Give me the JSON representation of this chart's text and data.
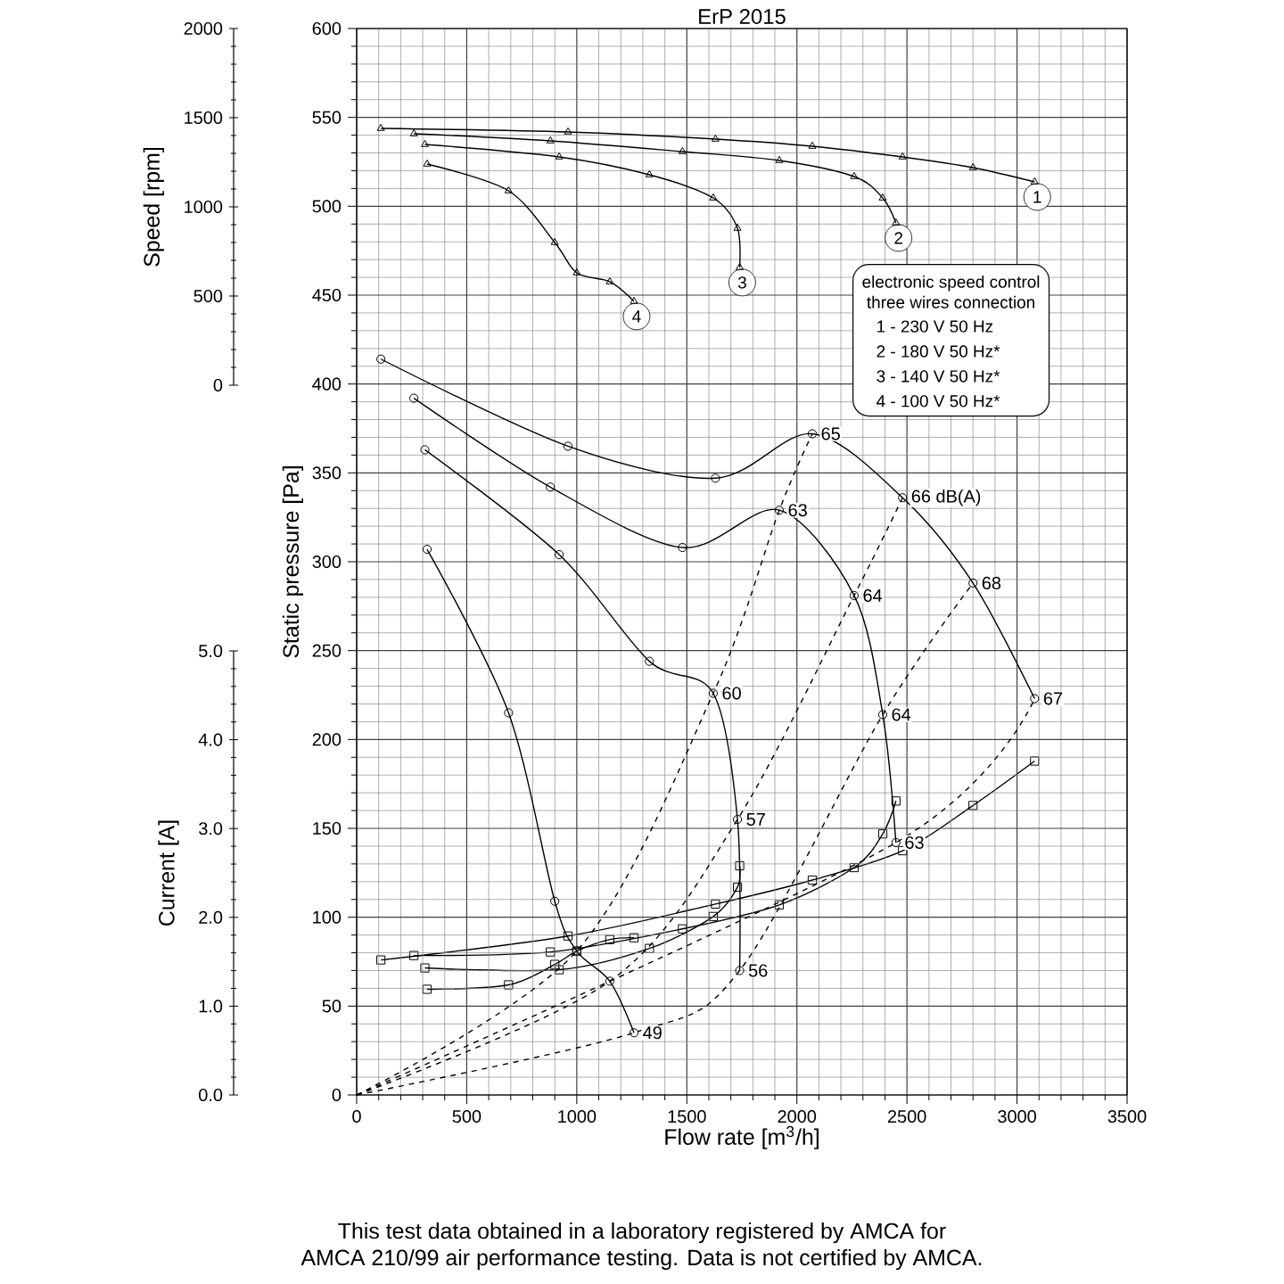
{
  "chart_data": [
    {
      "type": "line",
      "ylabel": "Speed [rpm]",
      "xlim": [
        0,
        3500
      ],
      "ylim": [
        0,
        2000
      ],
      "yticks": [
        0,
        500,
        1000,
        1500,
        2000
      ],
      "tick_labels": "y",
      "marker": "triangle",
      "annotations": [
        "electronic speed control",
        "three wires connection",
        "1 - 230 V 50 Hz",
        "2 - 180 V 50 Hz*",
        "3 - 140 V 50 Hz*",
        "4 - 100 V 50 Hz*"
      ],
      "series": [
        {
          "name": "1",
          "color": "#000000",
          "x": [
            110,
            960,
            1630,
            2070,
            2480,
            2800,
            3080
          ],
          "values": [
            1440,
            1420,
            1380,
            1340,
            1280,
            1220,
            1140
          ]
        },
        {
          "name": "2",
          "color": "#000000",
          "x": [
            260,
            880,
            1480,
            1920,
            2260,
            2390,
            2450
          ],
          "values": [
            1410,
            1370,
            1310,
            1260,
            1170,
            1050,
            910
          ]
        },
        {
          "name": "3",
          "color": "#000000",
          "x": [
            310,
            920,
            1330,
            1620,
            1730,
            1740
          ],
          "values": [
            1350,
            1280,
            1180,
            1050,
            880,
            660
          ]
        },
        {
          "name": "4",
          "color": "#000000",
          "x": [
            320,
            690,
            900,
            1000,
            1150,
            1260
          ],
          "values": [
            1240,
            1090,
            800,
            630,
            580,
            470
          ]
        }
      ]
    },
    {
      "type": "line",
      "title": "ErP 2015",
      "xlabel": "Flow rate [m$^{3}$/h]",
      "ylabel": "Static pressure [Pa]",
      "xlim": [
        0,
        3500
      ],
      "xticks": [
        0,
        500,
        1000,
        1500,
        2000,
        2500,
        3000,
        3500
      ],
      "ylim": [
        0,
        600
      ],
      "yticks": [
        0,
        50,
        100,
        150,
        200,
        250,
        300,
        350,
        400,
        450,
        500,
        550,
        600
      ],
      "grid": true,
      "marker": "circle",
      "annotations": [
        {
          "text": "65",
          "x": 2070,
          "y": 372
        },
        {
          "text": "66 dB(A)",
          "x": 2480,
          "y": 336
        },
        {
          "text": "68",
          "x": 2800,
          "y": 288
        },
        {
          "text": "67",
          "x": 3080,
          "y": 223
        },
        {
          "text": "63",
          "x": 1920,
          "y": 329
        },
        {
          "text": "64",
          "x": 2260,
          "y": 281
        },
        {
          "text": "64",
          "x": 2390,
          "y": 214
        },
        {
          "text": "63",
          "x": 2450,
          "y": 142
        },
        {
          "text": "60",
          "x": 1620,
          "y": 226
        },
        {
          "text": "57",
          "x": 1730,
          "y": 155
        },
        {
          "text": "56",
          "x": 1740,
          "y": 70
        },
        {
          "text": "49",
          "x": 1260,
          "y": 35
        },
        "This test data obtained in a laboratory registered by AMCA for",
        "AMCA 210/99 air performance testing. Data is not certified by AMCA."
      ],
      "series": [
        {
          "color": "#000000",
          "x": [
            110,
            960,
            1630,
            2070,
            2480,
            2800,
            3080
          ],
          "values": [
            414,
            365,
            347,
            372,
            336,
            288,
            223
          ]
        },
        {
          "color": "#000000",
          "x": [
            260,
            880,
            1480,
            1920,
            2260,
            2390,
            2450
          ],
          "values": [
            392,
            342,
            308,
            329,
            281,
            214,
            142
          ]
        },
        {
          "color": "#000000",
          "x": [
            310,
            920,
            1330,
            1620,
            1730,
            1740
          ],
          "values": [
            363,
            304,
            244,
            226,
            155,
            70
          ]
        },
        {
          "color": "#000000",
          "x": [
            320,
            690,
            900,
            1000,
            1150,
            1260
          ],
          "values": [
            307,
            215,
            109,
            81,
            64,
            35
          ]
        },
        {
          "color": "#000000",
          "line_style": "dashed",
          "marker": "none",
          "x": [
            0,
            1000,
            1620,
            1920,
            2070
          ],
          "values": [
            0,
            81,
            226,
            329,
            372
          ]
        },
        {
          "color": "#000000",
          "line_style": "dashed",
          "marker": "none",
          "x": [
            0,
            1150,
            1730,
            2260,
            2480
          ],
          "values": [
            0,
            64,
            155,
            281,
            336
          ]
        },
        {
          "color": "#000000",
          "line_style": "dashed",
          "marker": "none",
          "x": [
            0,
            1260,
            1740,
            2390,
            2800
          ],
          "values": [
            0,
            35,
            70,
            214,
            288
          ]
        },
        {
          "color": "#000000",
          "line_style": "dashed",
          "marker": "none",
          "x": [
            0,
            2450,
            3080
          ],
          "values": [
            0,
            142,
            223
          ]
        }
      ]
    },
    {
      "type": "line",
      "ylabel": "Current [A]",
      "xlim": [
        0,
        3500
      ],
      "ylim": [
        0,
        5
      ],
      "yticks": [
        {
          "value": 0,
          "label": "0.0"
        },
        {
          "value": 1,
          "label": "1.0"
        },
        {
          "value": 2,
          "label": "2.0"
        },
        {
          "value": 3,
          "label": "3.0"
        },
        {
          "value": 4,
          "label": "4.0"
        },
        {
          "value": 5,
          "label": "5.0"
        }
      ],
      "tick_labels": "y",
      "marker": "square",
      "series": [
        {
          "color": "#000000",
          "x": [
            110,
            960,
            1630,
            2070,
            2480,
            2800,
            3080
          ],
          "values": [
            1.52,
            1.79,
            2.15,
            2.42,
            2.75,
            3.26,
            3.76
          ]
        },
        {
          "color": "#000000",
          "x": [
            260,
            880,
            1480,
            1920,
            2260,
            2390,
            2450
          ],
          "values": [
            1.57,
            1.61,
            1.87,
            2.14,
            2.56,
            2.94,
            3.31
          ]
        },
        {
          "color": "#000000",
          "x": [
            310,
            920,
            1330,
            1620,
            1730,
            1740
          ],
          "values": [
            1.43,
            1.41,
            1.65,
            2.01,
            2.34,
            2.58
          ]
        },
        {
          "color": "#000000",
          "x": [
            320,
            690,
            900,
            1000,
            1150,
            1260
          ],
          "values": [
            1.19,
            1.24,
            1.47,
            1.62,
            1.75,
            1.77
          ]
        }
      ]
    }
  ]
}
